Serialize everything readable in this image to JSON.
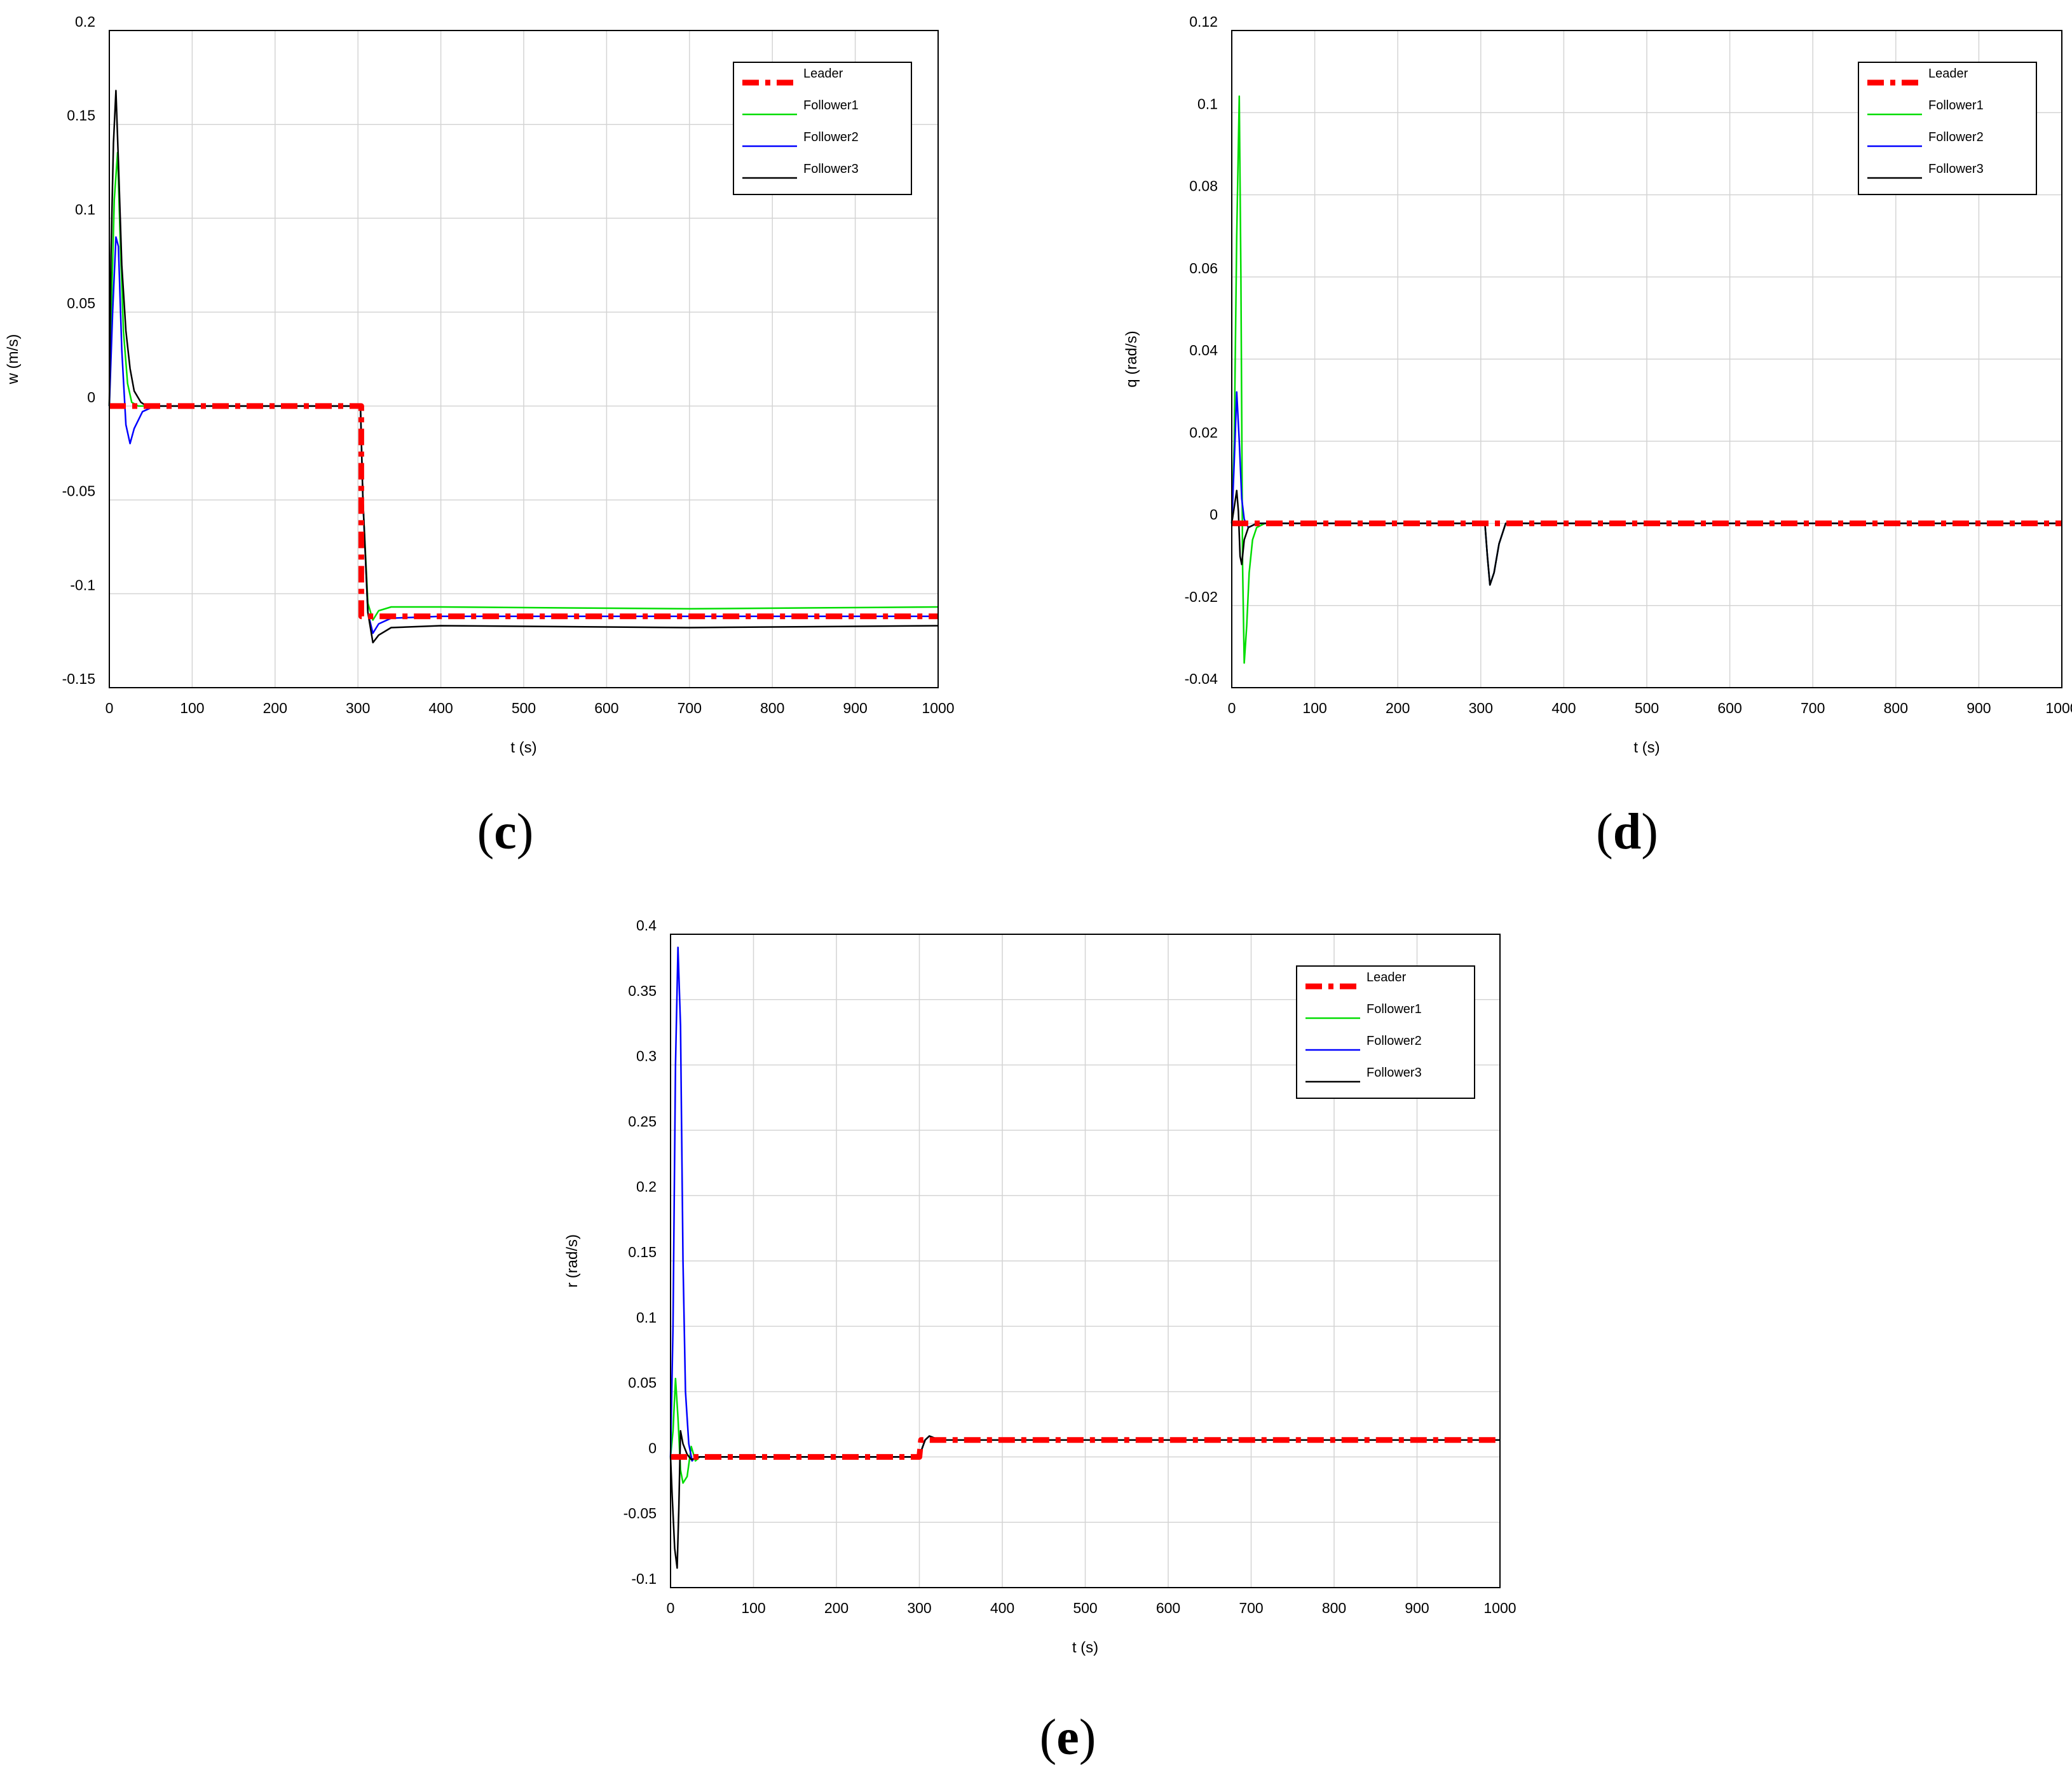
{
  "chart_data": [
    {
      "id": "c",
      "type": "line",
      "caption_letter": "c",
      "xlabel": "t (s)",
      "ylabel": "w (m/s)",
      "xlim": [
        0,
        1000
      ],
      "ylim": [
        -0.15,
        0.2
      ],
      "xticks": [
        0,
        100,
        200,
        300,
        400,
        500,
        600,
        700,
        800,
        900,
        1000
      ],
      "yticks": [
        -0.15,
        -0.1,
        -0.05,
        0,
        0.05,
        0.1,
        0.15,
        0.2
      ],
      "ytick_labels": [
        "-0.15",
        "-0.1",
        "-0.05",
        "0",
        "0.05",
        "0.1",
        "0.15",
        "0.2"
      ],
      "grid": true,
      "legend_position": "top-right",
      "series": [
        {
          "name": "Leader",
          "color": "#ff0000",
          "style": "dashdot",
          "x": [
            0,
            304,
            304,
            310,
            1000
          ],
          "y": [
            0,
            0,
            -0.112,
            -0.112,
            -0.112
          ]
        },
        {
          "name": "Follower1",
          "color": "#00dd00",
          "style": "solid",
          "x": [
            0,
            3,
            6,
            10,
            13,
            17,
            22,
            27,
            35,
            50,
            303,
            306,
            312,
            318,
            325,
            340,
            400,
            700,
            1000
          ],
          "y": [
            0,
            0.06,
            0.11,
            0.135,
            0.09,
            0.04,
            0.012,
            0.002,
            0,
            0,
            0,
            -0.05,
            -0.105,
            -0.114,
            -0.109,
            -0.107,
            -0.107,
            -0.108,
            -0.107
          ]
        },
        {
          "name": "Follower2",
          "color": "#0000ff",
          "style": "solid",
          "x": [
            0,
            4,
            8,
            11,
            15,
            20,
            25,
            30,
            40,
            55,
            303,
            306,
            312,
            318,
            325,
            340,
            400,
            700,
            1000
          ],
          "y": [
            0,
            0.05,
            0.09,
            0.085,
            0.03,
            -0.01,
            -0.02,
            -0.012,
            -0.003,
            0,
            0,
            -0.05,
            -0.11,
            -0.121,
            -0.116,
            -0.113,
            -0.112,
            -0.112,
            -0.112
          ]
        },
        {
          "name": "Follower3",
          "color": "#000000",
          "style": "solid",
          "x": [
            0,
            2,
            5,
            8,
            11,
            15,
            20,
            25,
            30,
            38,
            45,
            303,
            306,
            312,
            318,
            325,
            340,
            400,
            700,
            1000
          ],
          "y": [
            0,
            0.08,
            0.14,
            0.168,
            0.13,
            0.075,
            0.04,
            0.02,
            0.008,
            0.002,
            0,
            0,
            -0.05,
            -0.11,
            -0.126,
            -0.122,
            -0.118,
            -0.117,
            -0.118,
            -0.117
          ]
        }
      ]
    },
    {
      "id": "d",
      "type": "line",
      "caption_letter": "d",
      "xlabel": "t (s)",
      "ylabel": "q (rad/s)",
      "xlim": [
        0,
        1000
      ],
      "ylim": [
        -0.04,
        0.12
      ],
      "xticks": [
        0,
        100,
        200,
        300,
        400,
        500,
        600,
        700,
        800,
        900,
        1000
      ],
      "yticks": [
        -0.04,
        -0.02,
        0,
        0.02,
        0.04,
        0.06,
        0.08,
        0.1,
        0.12
      ],
      "ytick_labels": [
        "-0.04",
        "-0.02",
        "0",
        "0.02",
        "0.04",
        "0.06",
        "0.08",
        "0.1",
        "0.12"
      ],
      "grid": true,
      "legend_position": "top-right",
      "series": [
        {
          "name": "Leader",
          "color": "#ff0000",
          "style": "dashdot",
          "x": [
            0,
            1000
          ],
          "y": [
            0,
            0
          ]
        },
        {
          "name": "Follower1",
          "color": "#00dd00",
          "style": "solid",
          "x": [
            0,
            3,
            6,
            9,
            11,
            13,
            15,
            18,
            21,
            25,
            30,
            40,
            300,
            305,
            308,
            311,
            316,
            322,
            330,
            1000
          ],
          "y": [
            0,
            0.02,
            0.07,
            0.104,
            0.06,
            -0.01,
            -0.034,
            -0.025,
            -0.012,
            -0.004,
            -0.001,
            0,
            0,
            0,
            -0.008,
            -0.015,
            -0.012,
            -0.005,
            0,
            0
          ]
        },
        {
          "name": "Follower2",
          "color": "#0000ff",
          "style": "solid",
          "x": [
            0,
            3,
            6,
            9,
            12,
            15,
            20,
            30,
            300,
            305,
            308,
            311,
            316,
            322,
            330,
            1000
          ],
          "y": [
            0,
            0.015,
            0.032,
            0.02,
            0.006,
            0.001,
            -0.001,
            0,
            0,
            0,
            -0.008,
            -0.015,
            -0.012,
            -0.005,
            0,
            0
          ]
        },
        {
          "name": "Follower3",
          "color": "#000000",
          "style": "solid",
          "x": [
            0,
            3,
            6,
            8,
            10,
            12,
            15,
            20,
            30,
            300,
            305,
            308,
            311,
            316,
            322,
            330,
            1000
          ],
          "y": [
            0,
            0.004,
            0.008,
            0.003,
            -0.008,
            -0.01,
            -0.004,
            -0.001,
            0,
            0,
            0,
            -0.008,
            -0.015,
            -0.012,
            -0.005,
            0,
            0
          ]
        }
      ]
    },
    {
      "id": "e",
      "type": "line",
      "caption_letter": "e",
      "xlabel": "t (s)",
      "ylabel": "r (rad/s)",
      "xlim": [
        0,
        1000
      ],
      "ylim": [
        -0.1,
        0.4
      ],
      "xticks": [
        0,
        100,
        200,
        300,
        400,
        500,
        600,
        700,
        800,
        900,
        1000
      ],
      "yticks": [
        -0.1,
        -0.05,
        0,
        0.05,
        0.1,
        0.15,
        0.2,
        0.25,
        0.3,
        0.35,
        0.4
      ],
      "ytick_labels": [
        "-0.1",
        "-0.05",
        "0",
        "0.05",
        "0.1",
        "0.15",
        "0.2",
        "0.25",
        "0.3",
        "0.35",
        "0.4"
      ],
      "grid": true,
      "legend_position": "top-right",
      "series": [
        {
          "name": "Leader",
          "color": "#ff0000",
          "style": "dashdot",
          "x": [
            0,
            300,
            302,
            310,
            1000
          ],
          "y": [
            0,
            0,
            0.013,
            0.013,
            0.013
          ]
        },
        {
          "name": "Follower1",
          "color": "#00dd00",
          "style": "solid",
          "x": [
            0,
            3,
            6,
            9,
            12,
            15,
            20,
            25,
            30,
            35,
            45,
            300,
            303,
            307,
            312,
            320,
            330,
            1000
          ],
          "y": [
            0,
            0.02,
            0.06,
            0.03,
            -0.01,
            -0.02,
            -0.015,
            0.008,
            -0.003,
            0,
            0,
            0,
            0.006,
            0.013,
            0.016,
            0.014,
            0.013,
            0.013
          ]
        },
        {
          "name": "Follower2",
          "color": "#0000ff",
          "style": "solid",
          "x": [
            0,
            3,
            6,
            9,
            12,
            15,
            18,
            22,
            26,
            30,
            40,
            300,
            303,
            307,
            312,
            320,
            330,
            1000
          ],
          "y": [
            0,
            0.1,
            0.3,
            0.39,
            0.33,
            0.15,
            0.05,
            0.01,
            -0.003,
            0,
            0,
            0,
            0.006,
            0.013,
            0.016,
            0.014,
            0.013,
            0.013
          ]
        },
        {
          "name": "Follower3",
          "color": "#000000",
          "style": "solid",
          "x": [
            0,
            2,
            5,
            8,
            10,
            12,
            15,
            20,
            25,
            35,
            300,
            303,
            307,
            312,
            320,
            330,
            1000
          ],
          "y": [
            0,
            -0.03,
            -0.07,
            -0.085,
            -0.04,
            0.02,
            0.01,
            0.002,
            -0.002,
            0,
            0,
            0.006,
            0.013,
            0.016,
            0.014,
            0.013,
            0.013
          ]
        }
      ]
    }
  ]
}
